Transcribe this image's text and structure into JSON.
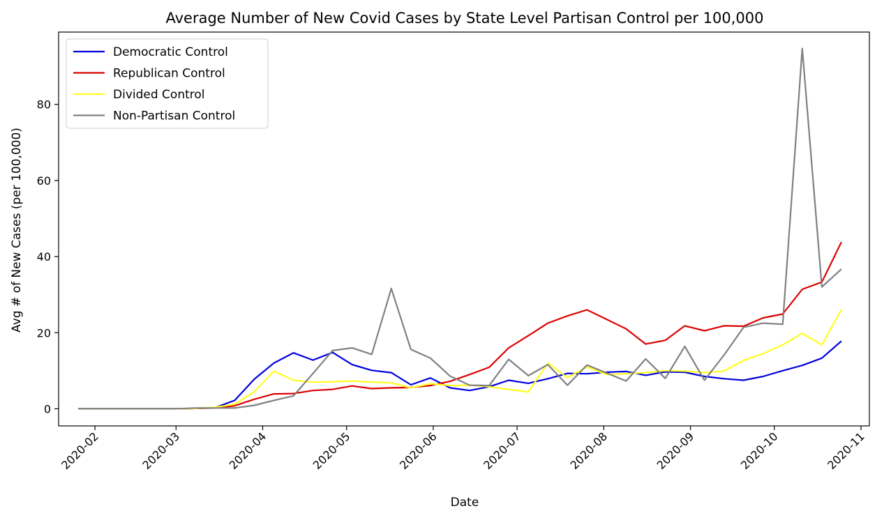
{
  "chart_data": {
    "type": "line",
    "title": "Average Number of New Covid Cases by State Level Partisan Control per 100,000",
    "xlabel": "Date",
    "ylabel": "Avg # of New Cases (per 100,000)",
    "x_range": [
      "2020-01-19",
      "2020-11-04"
    ],
    "ylim": [
      -4.5,
      99
    ],
    "grid": false,
    "legend_position": "top-left",
    "x_ticks": [
      "2020-02",
      "2020-03",
      "2020-04",
      "2020-05",
      "2020-06",
      "2020-07",
      "2020-08",
      "2020-09",
      "2020-10",
      "2020-11"
    ],
    "y_ticks": [
      0,
      20,
      40,
      60,
      80
    ],
    "x": [
      "2020-01-26",
      "2020-02-02",
      "2020-02-09",
      "2020-02-16",
      "2020-02-23",
      "2020-03-01",
      "2020-03-08",
      "2020-03-15",
      "2020-03-22",
      "2020-03-29",
      "2020-04-05",
      "2020-04-12",
      "2020-04-19",
      "2020-04-26",
      "2020-05-03",
      "2020-05-10",
      "2020-05-17",
      "2020-05-24",
      "2020-05-31",
      "2020-06-07",
      "2020-06-14",
      "2020-06-21",
      "2020-06-28",
      "2020-07-05",
      "2020-07-12",
      "2020-07-19",
      "2020-07-26",
      "2020-08-02",
      "2020-08-09",
      "2020-08-16",
      "2020-08-23",
      "2020-08-30",
      "2020-09-06",
      "2020-09-13",
      "2020-09-20",
      "2020-09-27",
      "2020-10-04",
      "2020-10-11",
      "2020-10-18",
      "2020-10-25"
    ],
    "series": [
      {
        "name": "Democratic Control",
        "color": "#0000dd",
        "values": [
          0,
          0,
          0,
          0,
          0,
          0,
          0.1,
          0.3,
          2.2,
          7.8,
          12.0,
          14.7,
          12.8,
          14.8,
          11.6,
          10.1,
          9.5,
          6.3,
          8.1,
          5.5,
          4.8,
          5.8,
          7.5,
          6.7,
          7.9,
          9.3,
          9.2,
          9.6,
          9.8,
          8.8,
          9.7,
          9.6,
          8.5,
          7.9,
          7.5,
          8.5,
          10.0,
          11.4,
          13.3,
          17.8
        ]
      },
      {
        "name": "Republican Control",
        "color": "#dd0000",
        "values": [
          0,
          0,
          0,
          0,
          0,
          0,
          0.1,
          0.2,
          0.8,
          2.5,
          3.9,
          4.0,
          4.8,
          5.1,
          6.0,
          5.3,
          5.5,
          5.6,
          6.1,
          7.2,
          9.0,
          10.9,
          16.0,
          19.2,
          22.5,
          24.4,
          26.0,
          23.5,
          21.0,
          17.0,
          18.0,
          21.8,
          20.5,
          21.8,
          21.7,
          23.9,
          24.9,
          31.4,
          33.3,
          43.8
        ]
      },
      {
        "name": "Divided Control",
        "color": "#ffff22",
        "values": [
          0,
          0,
          0,
          0,
          0,
          0,
          0.1,
          0.4,
          1.2,
          4.5,
          9.9,
          7.5,
          7.0,
          7.1,
          7.3,
          7.0,
          6.8,
          5.5,
          6.6,
          6.1,
          6.2,
          5.8,
          5.1,
          4.4,
          12.0,
          8.2,
          11.0,
          9.0,
          9.2,
          9.5,
          10.0,
          9.9,
          9.5,
          9.9,
          12.7,
          14.5,
          16.8,
          19.8,
          16.8,
          26.1
        ]
      },
      {
        "name": "Non-Partisan Control",
        "color": "#808080",
        "values": [
          0,
          0,
          0,
          0,
          0,
          0,
          0.2,
          0.2,
          0.2,
          0.9,
          2.2,
          3.4,
          9.3,
          15.3,
          16.0,
          14.3,
          31.6,
          15.6,
          13.3,
          8.6,
          6.2,
          6.1,
          13.0,
          8.7,
          11.6,
          6.2,
          11.5,
          9.4,
          7.3,
          13.1,
          8.0,
          16.4,
          7.5,
          14.1,
          21.4,
          22.5,
          22.2,
          94.7,
          32.0,
          36.7
        ]
      }
    ]
  }
}
